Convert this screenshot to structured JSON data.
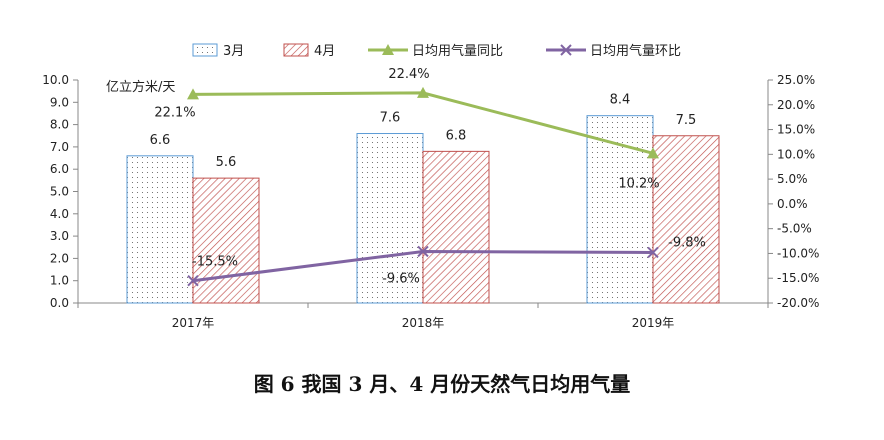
{
  "caption": "图 6  我国 3 月、4 月份天然气日均用气量",
  "chart_data": {
    "type": "bar",
    "categories": [
      "2017年",
      "2018年",
      "2019年"
    ],
    "unit_label": "亿立方米/天",
    "ylim": [
      0,
      10
    ],
    "y_ticks": [
      "0.0",
      "1.0",
      "2.0",
      "3.0",
      "4.0",
      "5.0",
      "6.0",
      "7.0",
      "8.0",
      "9.0",
      "10.0"
    ],
    "y2lim": [
      -20,
      25
    ],
    "y2_ticks": [
      "-20.0%",
      "-15.0%",
      "-10.0%",
      "-5.0%",
      "0.0%",
      "5.0%",
      "10.0%",
      "15.0%",
      "20.0%",
      "25.0%"
    ],
    "series": [
      {
        "name": "3月",
        "kind": "bar",
        "axis": "left",
        "values": [
          6.6,
          7.6,
          8.4
        ],
        "labels": [
          "6.6",
          "7.6",
          "8.4"
        ],
        "color": "#5b9bd5"
      },
      {
        "name": "4月",
        "kind": "bar",
        "axis": "left",
        "values": [
          5.6,
          6.8,
          7.5
        ],
        "labels": [
          "5.6",
          "6.8",
          "7.5"
        ],
        "color": "#c0504d"
      },
      {
        "name": "日均用气量同比",
        "kind": "line",
        "axis": "right",
        "values": [
          22.1,
          22.4,
          10.2
        ],
        "labels": [
          "22.1%",
          "22.4%",
          "10.2%"
        ],
        "color": "#9bbb59",
        "marker": "triangle"
      },
      {
        "name": "日均用气量环比",
        "kind": "line",
        "axis": "right",
        "values": [
          -15.5,
          -9.6,
          -9.8
        ],
        "labels": [
          "-15.5%",
          "-9.6%",
          "-9.8%"
        ],
        "color": "#8064a2",
        "marker": "x"
      }
    ],
    "legend_position": "top",
    "grid": false
  }
}
